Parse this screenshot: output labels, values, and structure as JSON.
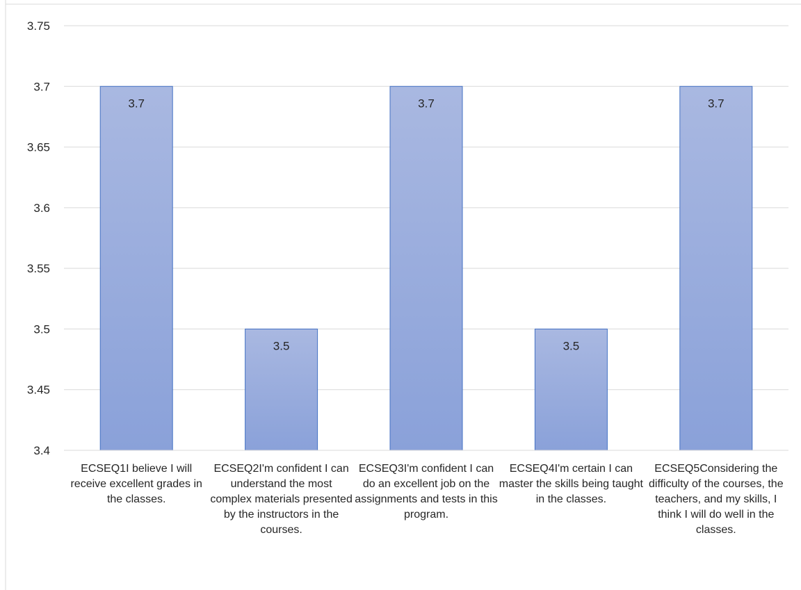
{
  "chart_data": {
    "type": "bar",
    "categories": [
      "ECSEQ1I believe I will receive excellent grades in the classes.",
      "ECSEQ2I'm confident I can understand the most complex materials presented by the instructors in the courses.",
      "ECSEQ3I'm confident I can do an excellent job on the assignments and tests in this program.",
      "ECSEQ4I'm certain I can master the skills being taught in the classes.",
      "ECSEQ5Considering the difficulty of the courses, the teachers, and my skills, I think I will do well in the classes."
    ],
    "values": [
      3.7,
      3.5,
      3.7,
      3.5,
      3.7
    ],
    "data_labels": [
      "3.7",
      "3.5",
      "3.7",
      "3.5",
      "3.7"
    ],
    "ylim": [
      3.4,
      3.75
    ],
    "y_ticks": [
      "3.4",
      "3.45",
      "3.5",
      "3.55",
      "3.6",
      "3.65",
      "3.7",
      "3.75"
    ],
    "y_tick_values": [
      3.4,
      3.45,
      3.5,
      3.55,
      3.6,
      3.65,
      3.7,
      3.75
    ],
    "grid": true,
    "legend": "none",
    "colors": {
      "bar_fill_top": "#a9b8e1",
      "bar_fill_bottom": "#8aa1d9",
      "bar_stroke": "#4472c4",
      "grid": "#d9d9d9"
    }
  }
}
